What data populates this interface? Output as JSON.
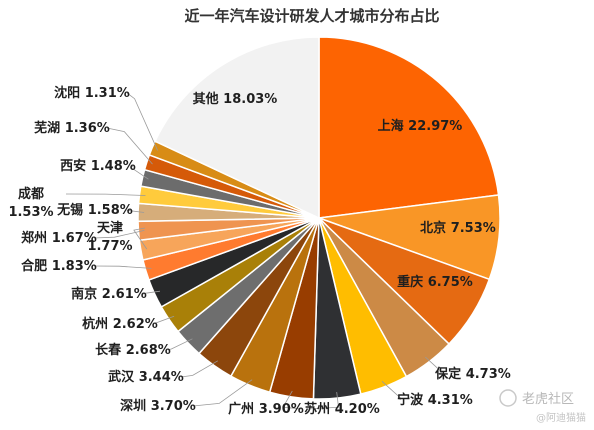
{
  "chart_data": {
    "type": "pie",
    "title": "近一年汽车设计研发人才城市分布占比",
    "unit": "%",
    "slices": [
      {
        "name": "上海",
        "value": 22.97,
        "label": "上海 22.97%",
        "color": "#fd6402"
      },
      {
        "name": "北京",
        "value": 7.53,
        "label": "北京 7.53%",
        "color": "#f99626"
      },
      {
        "name": "重庆",
        "value": 6.75,
        "label": "重庆 6.75%",
        "color": "#e56a12"
      },
      {
        "name": "保定",
        "value": 4.73,
        "label": "保定 4.73%",
        "color": "#cc8a46"
      },
      {
        "name": "宁波",
        "value": 4.31,
        "label": "宁波 4.31%",
        "color": "#ffbd00"
      },
      {
        "name": "苏州",
        "value": 4.2,
        "label": "苏州 4.20%",
        "color": "#2f3033"
      },
      {
        "name": "广州",
        "value": 3.9,
        "label": "广州 3.90%",
        "color": "#983d00"
      },
      {
        "name": "深圳",
        "value": 3.7,
        "label": "深圳 3.70%",
        "color": "#b9720d"
      },
      {
        "name": "武汉",
        "value": 3.44,
        "label": "武汉 3.44%",
        "color": "#8c460c"
      },
      {
        "name": "长春",
        "value": 2.68,
        "label": "长春 2.68%",
        "color": "#6e6e6e"
      },
      {
        "name": "杭州",
        "value": 2.62,
        "label": "杭州 2.62%",
        "color": "#a98008"
      },
      {
        "name": "南京",
        "value": 2.61,
        "label": "南京 2.61%",
        "color": "#272829"
      },
      {
        "name": "合肥",
        "value": 1.83,
        "label": "合肥 1.83%",
        "color": "#ff7b2f"
      },
      {
        "name": "天津",
        "value": 1.77,
        "label": "天津 1.77%",
        "color": "#f7a55a"
      },
      {
        "name": "郑州",
        "value": 1.67,
        "label": "郑州 1.67%",
        "color": "#ef9450"
      },
      {
        "name": "无锡",
        "value": 1.58,
        "label": "无锡 1.58%",
        "color": "#d6ad7a"
      },
      {
        "name": "成都",
        "value": 1.53,
        "label": "成都 1.53%",
        "color": "#ffcb3c"
      },
      {
        "name": "西安",
        "value": 1.48,
        "label": "西安 1.48%",
        "color": "#6c6c6c"
      },
      {
        "name": "芜湖",
        "value": 1.36,
        "label": "芜湖 1.36%",
        "color": "#d55a09"
      },
      {
        "name": "沈阳",
        "value": 1.31,
        "label": "沈阳 1.31%",
        "color": "#d88c16"
      },
      {
        "name": "其他",
        "value": 18.03,
        "label": "其他 18.03%",
        "color": "#f2f2f2"
      }
    ]
  },
  "watermark": {
    "brand": "老虎社区",
    "sub": "@阿迪猫猫"
  }
}
